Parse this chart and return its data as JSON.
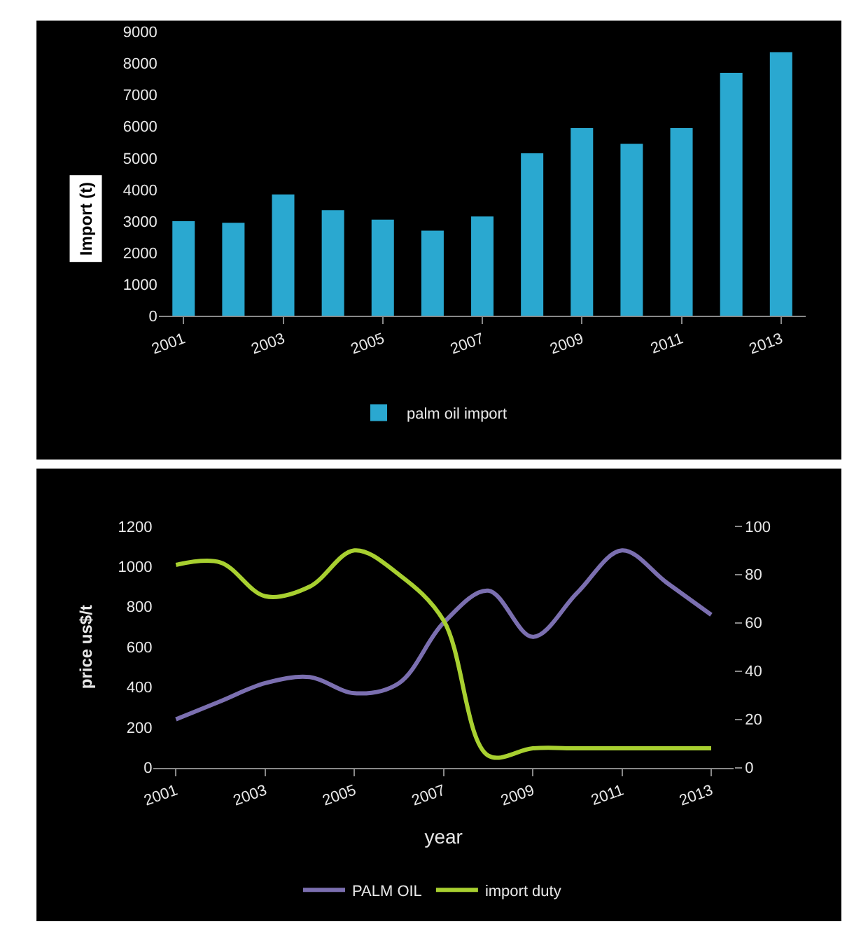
{
  "chart_data": [
    {
      "type": "bar",
      "ylabel": "Import (t)",
      "categories": [
        "2001",
        null,
        "2003",
        null,
        "2005",
        null,
        "2007",
        null,
        "2009",
        null,
        "2011",
        null,
        "2013"
      ],
      "series": [
        {
          "name": "palm oil import",
          "color": "#2aa8d0",
          "values": [
            3000,
            2950,
            3850,
            3350,
            3050,
            2700,
            3150,
            5150,
            5950,
            5450,
            5950,
            7700,
            8350
          ]
        }
      ],
      "ylim": [
        0,
        9000
      ],
      "yticks": [
        0,
        1000,
        2000,
        3000,
        4000,
        5000,
        6000,
        7000,
        8000,
        9000
      ],
      "grid": false,
      "legend": "bottom"
    },
    {
      "type": "line",
      "xlabel": "year",
      "ylabel": "price us$/t",
      "categories": [
        "2001",
        null,
        "2003",
        null,
        "2005",
        null,
        "2007",
        null,
        "2009",
        null,
        "2011",
        null,
        "2013"
      ],
      "series": [
        {
          "name": "PALM OIL",
          "color": "#7b6fb0",
          "values": [
            240,
            330,
            420,
            450,
            370,
            420,
            720,
            880,
            650,
            870,
            1080,
            920,
            760
          ]
        },
        {
          "name": "import duty",
          "color": "#a8d030",
          "axis": "y2",
          "values": [
            84,
            85,
            71,
            75,
            90,
            80,
            61,
            5,
            8,
            8,
            8,
            8,
            8
          ]
        }
      ],
      "ylim": [
        0,
        1200
      ],
      "yticks": [
        0,
        200,
        400,
        600,
        800,
        1000,
        1200
      ],
      "y2lim": [
        0,
        100
      ],
      "y2ticks": [
        0,
        20,
        40,
        60,
        80,
        100
      ],
      "grid": false,
      "legend": "bottom",
      "marker": "none",
      "line_style": "solid"
    }
  ]
}
